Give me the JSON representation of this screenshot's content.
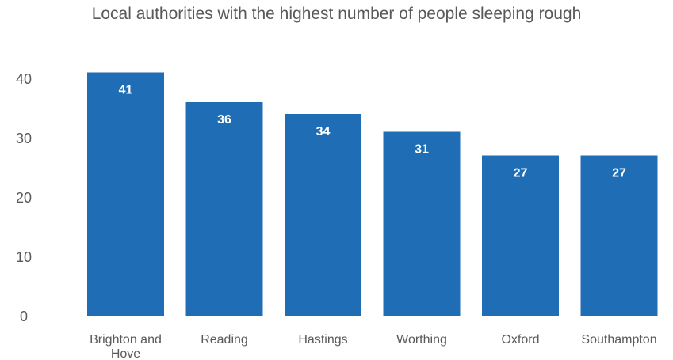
{
  "chart_data": {
    "type": "bar",
    "title": "Local authorities with the highest number of people sleeping rough",
    "xlabel": "",
    "ylabel": "",
    "categories": [
      "Brighton and Hove",
      "Reading",
      "Hastings",
      "Worthing",
      "Oxford",
      "Southampton"
    ],
    "values": [
      41,
      36,
      34,
      31,
      27,
      27
    ],
    "data_labels": [
      "41",
      "36",
      "34",
      "31",
      "27",
      "27"
    ],
    "ylim": [
      0,
      45
    ],
    "yticks": [
      0,
      10,
      20,
      30,
      40
    ],
    "ytick_labels": [
      "0",
      "10",
      "20",
      "30",
      "40"
    ],
    "grid": false,
    "bar_color": "#1f6db5",
    "text_color": "#595959"
  }
}
